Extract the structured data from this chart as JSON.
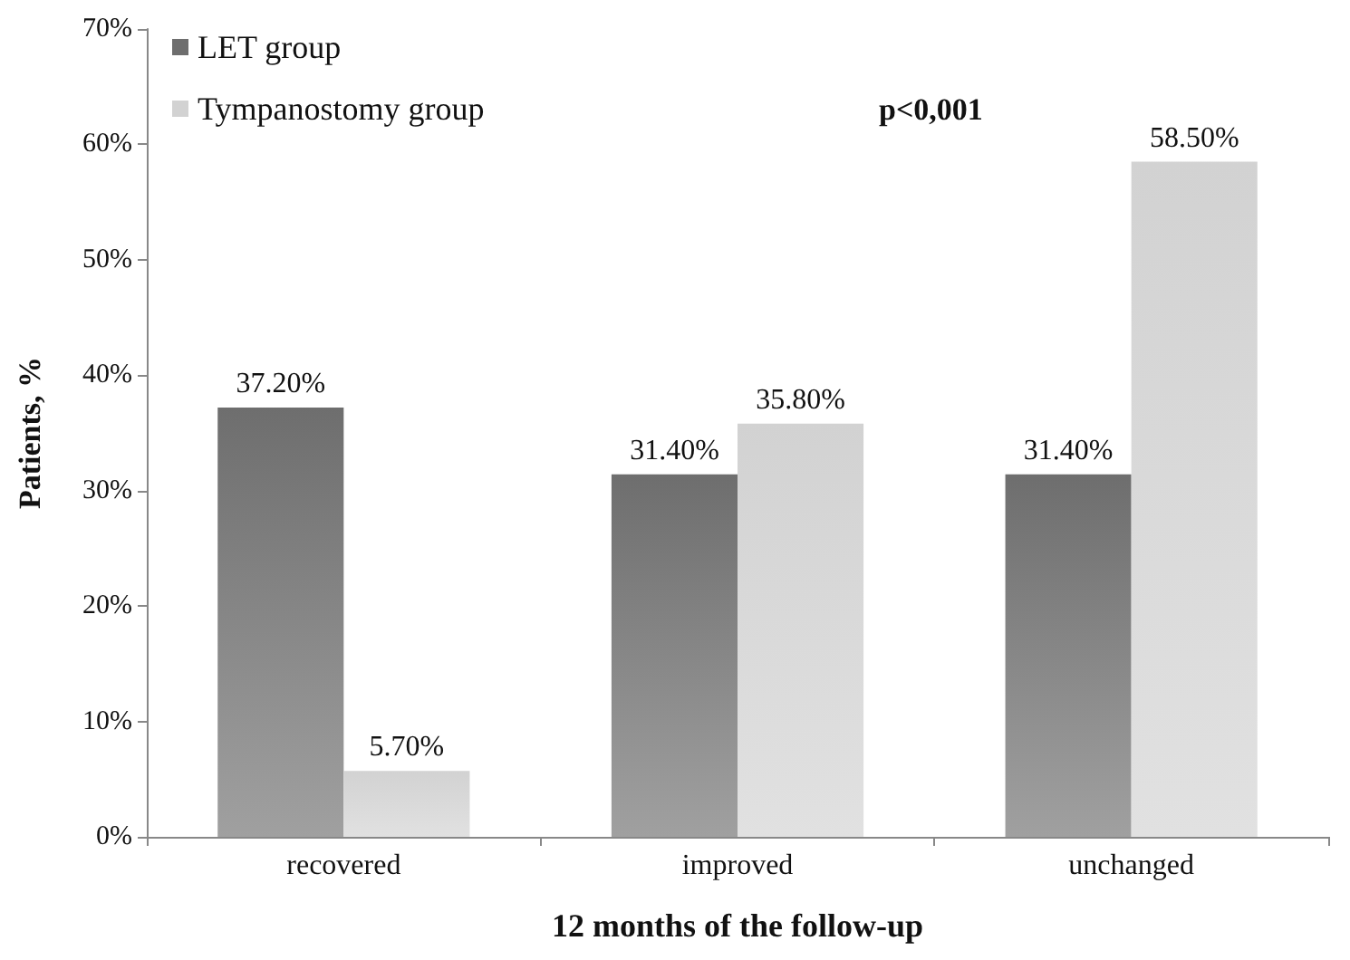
{
  "chart_data": {
    "type": "bar",
    "xlabel": "12 months of the follow-up",
    "ylabel": "Patients, %",
    "categories": [
      "recovered",
      "improved",
      "unchanged"
    ],
    "series": [
      {
        "name": "LET group",
        "color": "#6e6e6e",
        "values": [
          37.2,
          31.4,
          31.4
        ],
        "value_labels": [
          "37.20%",
          "31.40%",
          "31.40%"
        ]
      },
      {
        "name": "Tympanostomy group",
        "color": "#d2d2d2",
        "values": [
          5.7,
          35.8,
          58.5
        ],
        "value_labels": [
          "5.70%",
          "35.80%",
          "58.50%"
        ]
      }
    ],
    "ylim": [
      0,
      70
    ],
    "yticks": [
      {
        "value": 0,
        "label": "0%"
      },
      {
        "value": 10,
        "label": "10%"
      },
      {
        "value": 20,
        "label": "20%"
      },
      {
        "value": 30,
        "label": "30%"
      },
      {
        "value": 40,
        "label": "40%"
      },
      {
        "value": 50,
        "label": "50%"
      },
      {
        "value": 60,
        "label": "60%"
      },
      {
        "value": 70,
        "label": "70%"
      }
    ],
    "annotations": [
      "p<0,001"
    ],
    "legend": "top left",
    "grid": false
  }
}
